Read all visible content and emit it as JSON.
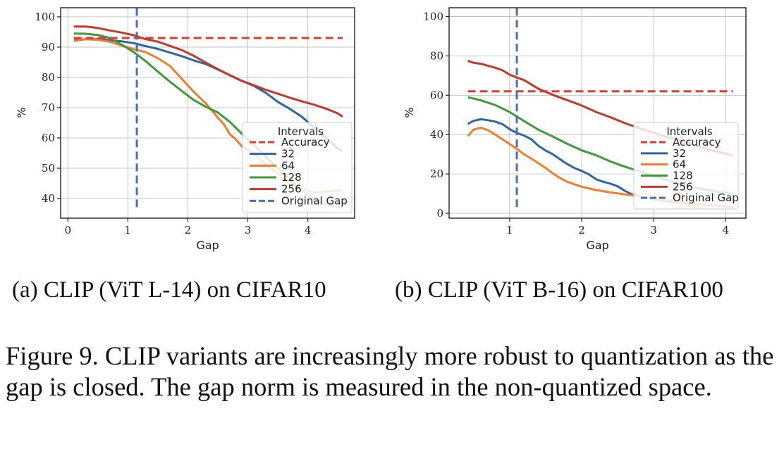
{
  "figure_caption": "Figure 9. CLIP variants are increasingly more robust to quantization as the gap is closed. The gap norm is measured in the non-quantized space.",
  "colors": {
    "accuracy": "#de3b2f",
    "i32": "#2c66a6",
    "i64": "#ee7e2d",
    "i128": "#3e9a3a",
    "i256": "#c0392b",
    "original_gap": "#4a6fb0"
  },
  "chart_data": [
    {
      "type": "line",
      "caption": "(a) CLIP (ViT L-14) on CIFAR10",
      "xlabel": "Gap",
      "ylabel": "%",
      "xlim": [
        -0.12,
        4.78
      ],
      "ylim": [
        33.5,
        103
      ],
      "xticks": [
        0,
        1,
        2,
        3,
        4
      ],
      "yticks": [
        40,
        50,
        60,
        70,
        80,
        90,
        100
      ],
      "grid": true,
      "legend": {
        "title": "Intervals",
        "position": "lower right",
        "labels": [
          "Accuracy",
          "32",
          "64",
          "128",
          "256",
          "Original Gap"
        ]
      },
      "accuracy": 93,
      "original_gap": 1.15,
      "series": [
        {
          "name": "32",
          "key": "i32",
          "x": [
            0.1,
            0.3,
            0.5,
            0.7,
            0.9,
            1.1,
            1.3,
            1.5,
            1.7,
            1.9,
            2.1,
            2.3,
            2.5,
            2.7,
            2.9,
            3.1,
            3.3,
            3.5,
            3.7,
            3.9,
            4.1,
            4.3,
            4.5,
            4.58
          ],
          "y": [
            92.2,
            92.6,
            92.6,
            92.3,
            91.9,
            91.3,
            90.3,
            89.4,
            88.2,
            87.0,
            85.6,
            84.4,
            82.6,
            80.7,
            78.9,
            77.2,
            74.9,
            71.9,
            69.6,
            67.0,
            63.5,
            60.0,
            56.5,
            55.8
          ]
        },
        {
          "name": "64",
          "key": "i64",
          "x": [
            0.1,
            0.3,
            0.5,
            0.7,
            0.9,
            1.1,
            1.3,
            1.5,
            1.7,
            1.9,
            2.1,
            2.3,
            2.5,
            2.6,
            2.7,
            2.8,
            2.9,
            3.1,
            3.3,
            3.5,
            3.7,
            3.9,
            4.1,
            4.3,
            4.5,
            4.58
          ],
          "y": [
            92.0,
            92.6,
            92.4,
            91.8,
            90.5,
            89.3,
            88.3,
            86.3,
            83.8,
            79.5,
            75.2,
            71.4,
            66.7,
            64.5,
            61.2,
            59.5,
            57.2,
            54.9,
            51.2,
            48.3,
            45.0,
            43.2,
            42.1,
            42.3,
            42.6,
            42.6
          ]
        },
        {
          "name": "128",
          "key": "i128",
          "x": [
            0.1,
            0.3,
            0.5,
            0.7,
            0.9,
            1.1,
            1.3,
            1.5,
            1.7,
            1.9,
            2.1,
            2.3,
            2.5,
            2.7,
            2.9,
            3.1,
            3.3,
            3.5,
            3.7,
            3.9,
            4.1,
            4.3,
            4.5,
            4.58
          ],
          "y": [
            94.5,
            94.4,
            94.0,
            93.0,
            90.8,
            88.3,
            85.3,
            81.9,
            78.6,
            75.5,
            72.5,
            70.3,
            68.4,
            65.3,
            61.4,
            57.8,
            53.7,
            50.0,
            46.4,
            42.6,
            39.7,
            38.2,
            37.2,
            37.0
          ]
        },
        {
          "name": "256",
          "key": "i256",
          "x": [
            0.1,
            0.3,
            0.5,
            0.7,
            0.9,
            1.1,
            1.3,
            1.5,
            1.7,
            1.9,
            2.1,
            2.3,
            2.5,
            2.7,
            2.9,
            3.1,
            3.3,
            3.5,
            3.7,
            3.9,
            4.1,
            4.3,
            4.5,
            4.58
          ],
          "y": [
            96.8,
            96.8,
            96.3,
            95.5,
            94.8,
            93.9,
            92.6,
            91.8,
            90.4,
            89.0,
            87.1,
            84.9,
            82.7,
            80.7,
            78.8,
            77.4,
            75.9,
            74.6,
            73.3,
            72.1,
            71.0,
            69.7,
            68.1,
            67.0
          ]
        }
      ]
    },
    {
      "type": "line",
      "caption": "(b) CLIP (ViT B-16) on CIFAR100",
      "xlabel": "Gap",
      "ylabel": "%",
      "xlim": [
        0.16,
        4.28
      ],
      "ylim": [
        -2.5,
        104.5
      ],
      "xticks": [
        1,
        2,
        3,
        4
      ],
      "yticks": [
        0,
        20,
        40,
        60,
        80,
        100
      ],
      "grid": true,
      "legend": {
        "title": "Intervals",
        "position": "lower right",
        "labels": [
          "Accuracy",
          "32",
          "64",
          "128",
          "256",
          "Original Gap"
        ]
      },
      "accuracy": 62,
      "original_gap": 1.1,
      "series": [
        {
          "name": "32",
          "key": "i32",
          "x": [
            0.42,
            0.5,
            0.6,
            0.7,
            0.8,
            0.9,
            1.0,
            1.1,
            1.2,
            1.3,
            1.4,
            1.5,
            1.6,
            1.7,
            1.8,
            1.9,
            2.0,
            2.1,
            2.2,
            2.3,
            2.4,
            2.5,
            2.6,
            2.7,
            2.8,
            2.9,
            3.0,
            3.2,
            3.4,
            3.6,
            3.8,
            4.0,
            4.1
          ],
          "y": [
            45.5,
            47.0,
            47.8,
            47.3,
            46.6,
            45.3,
            42.8,
            40.8,
            39.5,
            37.6,
            34.3,
            31.9,
            30.0,
            27.4,
            25.0,
            23.0,
            21.5,
            19.8,
            17.3,
            16.0,
            15.0,
            13.7,
            11.4,
            9.6,
            8.6,
            7.8,
            7.1,
            6.0,
            5.2,
            4.6,
            4.0,
            3.5,
            3.2
          ]
        },
        {
          "name": "64",
          "key": "i64",
          "x": [
            0.42,
            0.5,
            0.6,
            0.7,
            0.8,
            0.9,
            1.0,
            1.1,
            1.2,
            1.3,
            1.4,
            1.5,
            1.6,
            1.7,
            1.8,
            1.9,
            2.0,
            2.2,
            2.4,
            2.6,
            2.8,
            3.0,
            3.2,
            3.4,
            3.6,
            3.8,
            4.0,
            4.1
          ],
          "y": [
            39.3,
            42.5,
            43.5,
            42.2,
            40.0,
            37.6,
            35.2,
            32.7,
            30.0,
            27.8,
            25.4,
            23.0,
            20.3,
            17.9,
            16.0,
            14.7,
            13.5,
            11.8,
            10.6,
            9.6,
            8.6,
            7.4,
            6.4,
            5.5,
            4.7,
            4.1,
            3.4,
            3.1
          ]
        },
        {
          "name": "128",
          "key": "i128",
          "x": [
            0.42,
            0.6,
            0.8,
            1.0,
            1.2,
            1.4,
            1.6,
            1.8,
            2.0,
            2.2,
            2.4,
            2.6,
            2.8,
            3.0,
            3.2,
            3.4,
            3.6,
            3.8,
            4.0,
            4.1
          ],
          "y": [
            59.0,
            57.4,
            55.0,
            51.5,
            46.9,
            42.5,
            39.0,
            35.3,
            32.0,
            29.5,
            26.3,
            23.7,
            21.3,
            19.0,
            16.7,
            14.5,
            12.8,
            11.5,
            10.3,
            9.8
          ]
        },
        {
          "name": "256",
          "key": "i256",
          "x": [
            0.42,
            0.5,
            0.6,
            0.7,
            0.8,
            0.9,
            1.0,
            1.1,
            1.2,
            1.4,
            1.6,
            1.8,
            2.0,
            2.2,
            2.4,
            2.6,
            2.8,
            3.0,
            3.2,
            3.4,
            3.6,
            3.8,
            4.0,
            4.1
          ],
          "y": [
            77.5,
            76.5,
            76.0,
            75.0,
            74.0,
            72.7,
            70.5,
            69.0,
            67.7,
            63.3,
            60.2,
            57.5,
            54.8,
            51.5,
            48.8,
            45.8,
            43.3,
            40.9,
            38.6,
            36.4,
            34.3,
            32.0,
            30.2,
            29.3
          ]
        }
      ]
    }
  ]
}
